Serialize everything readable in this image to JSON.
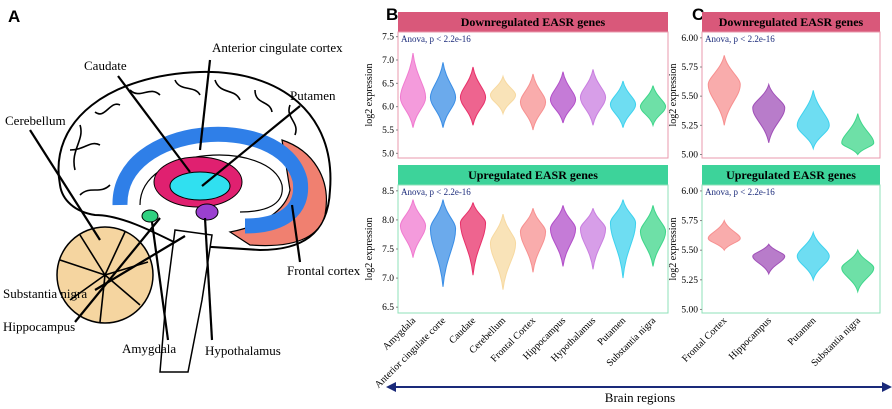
{
  "panels": [
    "A",
    "B",
    "C"
  ],
  "diagram": {
    "labels": [
      "Anterior cingulate cortex",
      "Caudate",
      "Putamen",
      "Cerebellum",
      "Frontal cortex",
      "Substantia nigra",
      "Hippocampus",
      "Amygdala",
      "Hypothalamus"
    ]
  },
  "xlabel": "Brain regions",
  "chart_data": [
    {
      "type": "violin",
      "title": "Downregulated EASR genes",
      "title_color": "#d9587a",
      "border_color": "#e89aac",
      "annotation": "Anova, p < 2.2e-16",
      "ylabel": "log2 expression",
      "ylim": [
        4.9,
        7.6
      ],
      "yticks": [
        {
          "value": 5,
          "label": "5.0"
        },
        5.5,
        {
          "value": 6,
          "label": "6.0"
        },
        6.5,
        {
          "value": 7,
          "label": "7.0"
        },
        7.5
      ],
      "colors": [
        "#f07ad0",
        "#3a8ee6",
        "#e8306a",
        "#f7d9a0",
        "#f79090",
        "#b24fc9",
        "#c97ee0",
        "#3ed2ee",
        "#3ed68a"
      ],
      "min": [
        5.55,
        5.55,
        5.6,
        5.85,
        5.5,
        5.65,
        5.6,
        5.55,
        5.6
      ],
      "max": [
        7.15,
        6.95,
        6.85,
        6.65,
        6.7,
        6.75,
        6.8,
        6.55,
        6.45
      ],
      "median": [
        6.2,
        6.2,
        6.2,
        6.25,
        6.1,
        6.15,
        6.2,
        6.05,
        6.0
      ]
    },
    {
      "type": "violin",
      "title": "Upregulated EASR genes",
      "title_color": "#3dd39a",
      "border_color": "#8fe0b8",
      "annotation": "Anova, p < 2.2e-16",
      "ylabel": "log2 expression",
      "ylim": [
        6.4,
        8.6
      ],
      "yticks": [
        6.5,
        {
          "value": 7,
          "label": "7.0"
        },
        7.5,
        {
          "value": 8,
          "label": "8.0"
        },
        8.5
      ],
      "categories": [
        "Amygdala",
        "Anterior cingulate corte",
        "Caudate",
        "Cerebellum",
        "Frontal Cortex",
        "Hippocampus",
        "Hypothalamus",
        "Putamen",
        "Substantia nigra"
      ],
      "colors": [
        "#f07ad0",
        "#3a8ee6",
        "#e8306a",
        "#f7d9a0",
        "#f79090",
        "#b24fc9",
        "#c97ee0",
        "#3ed2ee",
        "#3ed68a"
      ],
      "min": [
        7.35,
        6.85,
        7.05,
        6.8,
        7.1,
        7.2,
        7.15,
        7.0,
        7.2
      ],
      "max": [
        8.35,
        8.35,
        8.3,
        8.1,
        8.2,
        8.25,
        8.2,
        8.35,
        8.25
      ],
      "median": [
        7.9,
        7.85,
        7.95,
        7.6,
        7.8,
        7.85,
        7.85,
        7.95,
        7.8
      ]
    },
    {
      "type": "violin",
      "title": "Downregulated EASR genes",
      "title_color": "#d9587a",
      "border_color": "#e89aac",
      "annotation": "Anova, p < 2.2e-16",
      "ylabel": "log2 expression",
      "ylim": [
        4.97,
        6.05
      ],
      "yticks": [
        {
          "value": 5,
          "label": "5.00"
        },
        {
          "value": 5.25,
          "label": "5.25"
        },
        {
          "value": 5.5,
          "label": "5.50"
        },
        {
          "value": 5.75,
          "label": "5.75"
        },
        {
          "value": 6,
          "label": "6.00"
        }
      ],
      "colors": [
        "#f79090",
        "#a050b8",
        "#3ed2ee",
        "#3ed68a"
      ],
      "min": [
        5.25,
        5.1,
        5.05,
        5.0
      ],
      "max": [
        5.85,
        5.6,
        5.55,
        5.35
      ],
      "median": [
        5.6,
        5.4,
        5.25,
        5.1
      ]
    },
    {
      "type": "violin",
      "title": "Upregulated EASR genes",
      "title_color": "#3dd39a",
      "border_color": "#8fe0b8",
      "annotation": "Anova, p < 2.2e-16",
      "ylabel": "log2 expression",
      "ylim": [
        4.97,
        6.05
      ],
      "yticks": [
        {
          "value": 5,
          "label": "5.00"
        },
        {
          "value": 5.25,
          "label": "5.25"
        },
        {
          "value": 5.5,
          "label": "5.50"
        },
        {
          "value": 5.75,
          "label": "5.75"
        },
        {
          "value": 6,
          "label": "6.00"
        }
      ],
      "categories": [
        "Frontal Cortex",
        "Hippocampus",
        "Putamen",
        "Substantia nigra"
      ],
      "colors": [
        "#f79090",
        "#a050b8",
        "#3ed2ee",
        "#3ed68a"
      ],
      "min": [
        5.5,
        5.3,
        5.25,
        5.15
      ],
      "max": [
        5.75,
        5.55,
        5.65,
        5.5
      ],
      "median": [
        5.6,
        5.45,
        5.45,
        5.35
      ]
    }
  ]
}
